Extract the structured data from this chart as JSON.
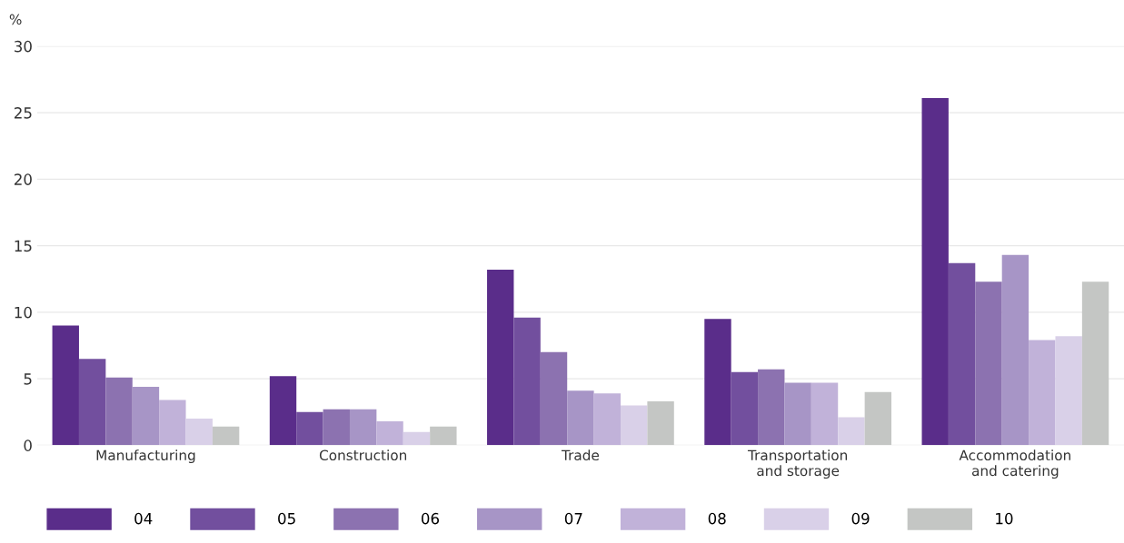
{
  "chart_data": {
    "type": "bar",
    "ylabel": "%",
    "categories": [
      "Manufacturing",
      "Construction",
      "Trade",
      "Transportation\nand storage",
      "Accommodation\nand catering"
    ],
    "series": [
      {
        "name": "04",
        "color": "#5a2d8a",
        "values": [
          9.0,
          5.2,
          13.2,
          9.5,
          26.1
        ]
      },
      {
        "name": "05",
        "color": "#724f9e",
        "values": [
          6.5,
          2.5,
          9.6,
          5.5,
          13.7
        ]
      },
      {
        "name": "06",
        "color": "#8c72b0",
        "values": [
          5.1,
          2.7,
          7.0,
          5.7,
          12.3
        ]
      },
      {
        "name": "07",
        "color": "#a795c6",
        "values": [
          4.4,
          2.7,
          4.1,
          4.7,
          14.3
        ]
      },
      {
        "name": "08",
        "color": "#c1b2d9",
        "values": [
          3.4,
          1.8,
          3.9,
          4.7,
          7.9
        ]
      },
      {
        "name": "09",
        "color": "#d9d0e8",
        "values": [
          2.0,
          1.0,
          3.0,
          2.1,
          8.2
        ]
      },
      {
        "name": "10",
        "color": "#c4c6c4",
        "values": [
          1.4,
          1.4,
          3.3,
          4.0,
          12.3
        ]
      }
    ],
    "ylim": [
      0,
      30
    ],
    "yticks": [
      0,
      5,
      10,
      15,
      20,
      25,
      30
    ],
    "grid": "y",
    "legend": "bottom left"
  }
}
